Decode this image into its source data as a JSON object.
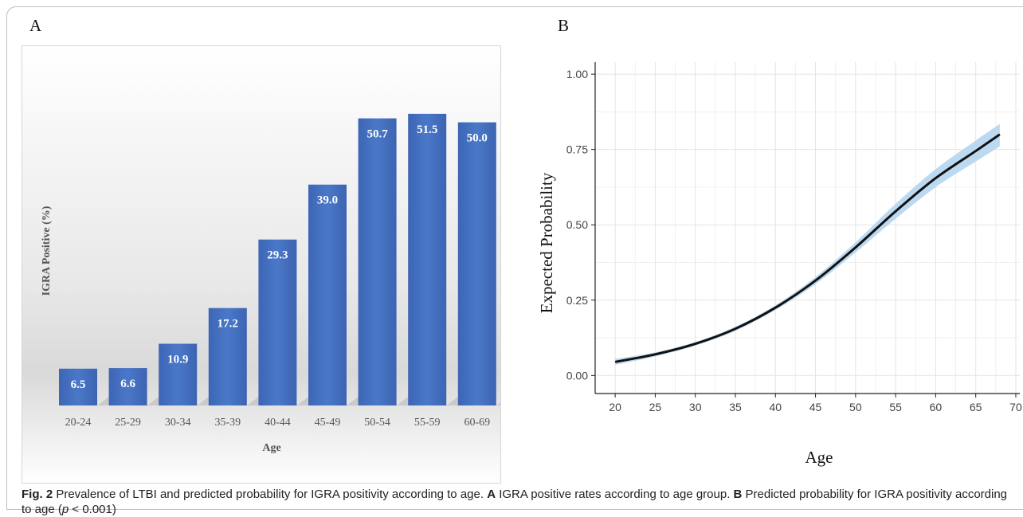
{
  "panels": {
    "a_letter": "A",
    "b_letter": "B"
  },
  "chart_data": [
    {
      "type": "bar",
      "title": "",
      "xlabel": "Age",
      "ylabel": "IGRA Positive (%)",
      "categories": [
        "20-24",
        "25-29",
        "30-34",
        "35-39",
        "40-44",
        "45-49",
        "50-54",
        "55-59",
        "60-69"
      ],
      "values": [
        6.5,
        6.6,
        10.9,
        17.2,
        29.3,
        39.0,
        50.7,
        51.5,
        50.0
      ],
      "value_labels": [
        "6.5",
        "6.6",
        "10.9",
        "17.2",
        "29.3",
        "39.0",
        "50.7",
        "51.5",
        "50.0"
      ],
      "ylim": [
        0,
        55
      ],
      "bar_color": "#4472c4",
      "grid": false,
      "legend": "none"
    },
    {
      "type": "line",
      "title": "",
      "xlabel": "Age",
      "ylabel": "Expected Probability",
      "xlim": [
        17.5,
        70.5
      ],
      "ylim": [
        0,
        1.0
      ],
      "xticks": [
        20,
        25,
        30,
        35,
        40,
        45,
        50,
        55,
        60,
        65,
        70
      ],
      "xtick_labels": [
        "20",
        "25",
        "30",
        "35",
        "40",
        "45",
        "50",
        "55",
        "60",
        "65",
        "70"
      ],
      "yticks": [
        0,
        0.25,
        0.5,
        0.75,
        1.0
      ],
      "ytick_labels": [
        "0.00",
        "0.25",
        "0.50",
        "0.75",
        "1.00"
      ],
      "grid": true,
      "legend": "none",
      "line_color": "#111111",
      "band_color": "#bcd9f2",
      "series": [
        {
          "x": [
            20,
            25,
            30,
            35,
            40,
            45,
            50,
            55,
            60,
            65,
            68
          ],
          "y": [
            0.045,
            0.07,
            0.105,
            0.155,
            0.225,
            0.315,
            0.425,
            0.545,
            0.655,
            0.745,
            0.8
          ],
          "lower": [
            0.035,
            0.063,
            0.099,
            0.148,
            0.217,
            0.303,
            0.408,
            0.52,
            0.625,
            0.71,
            0.76
          ],
          "upper": [
            0.055,
            0.077,
            0.111,
            0.162,
            0.233,
            0.327,
            0.442,
            0.57,
            0.685,
            0.78,
            0.835
          ]
        }
      ]
    }
  ],
  "caption": {
    "label": "Fig. 2",
    "text1": "  Prevalence of LTBI and predicted probability for IGRA positivity according to age. ",
    "a": "A",
    "text2": " IGRA positive rates according to age group. ",
    "b": "B",
    "text3": " Predicted probability for IGRA positivity according to age (",
    "p": "p",
    "text4": " < 0.001)"
  }
}
